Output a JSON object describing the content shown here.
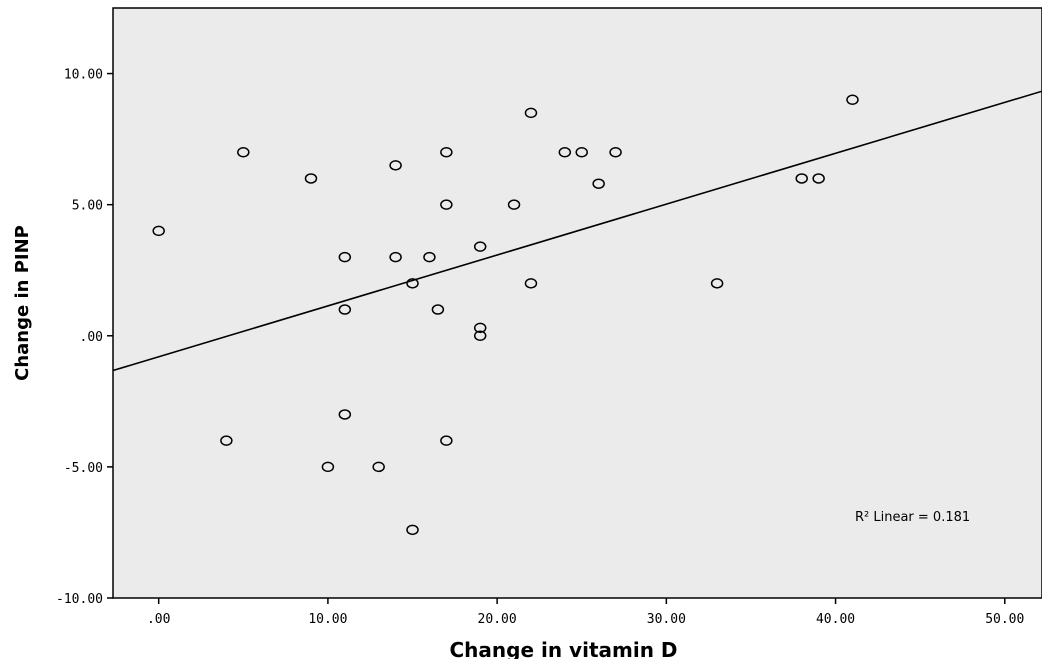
{
  "chart_data": {
    "type": "scatter",
    "title": "",
    "xlabel": "Change in vitamin D",
    "ylabel": "Change in PINP",
    "xlim": [
      -2.7,
      52.2
    ],
    "ylim": [
      -10,
      12.5
    ],
    "x_ticks": [
      {
        "value": 0,
        "label": ".00"
      },
      {
        "value": 10,
        "label": "10.00"
      },
      {
        "value": 20,
        "label": "20.00"
      },
      {
        "value": 30,
        "label": "30.00"
      },
      {
        "value": 40,
        "label": "40.00"
      },
      {
        "value": 50,
        "label": "50.00"
      }
    ],
    "y_ticks": [
      {
        "value": 10,
        "label": "10.00"
      },
      {
        "value": 5,
        "label": "5.00"
      },
      {
        "value": 0,
        "label": ".00"
      },
      {
        "value": -5,
        "label": "-5.00"
      },
      {
        "value": -10,
        "label": "-10.00"
      }
    ],
    "points": [
      {
        "x": 0,
        "y": 4
      },
      {
        "x": 4,
        "y": -4
      },
      {
        "x": 5,
        "y": 7
      },
      {
        "x": 9,
        "y": 6
      },
      {
        "x": 10,
        "y": -5
      },
      {
        "x": 11,
        "y": 3
      },
      {
        "x": 11,
        "y": 1
      },
      {
        "x": 11,
        "y": -3
      },
      {
        "x": 13,
        "y": -5
      },
      {
        "x": 14,
        "y": 6.5
      },
      {
        "x": 14,
        "y": 3
      },
      {
        "x": 15,
        "y": 2
      },
      {
        "x": 15,
        "y": -7.4
      },
      {
        "x": 16,
        "y": 3
      },
      {
        "x": 16.5,
        "y": 1
      },
      {
        "x": 17,
        "y": 7
      },
      {
        "x": 17,
        "y": 5
      },
      {
        "x": 17,
        "y": -4
      },
      {
        "x": 19,
        "y": 3.4
      },
      {
        "x": 19,
        "y": 0.3
      },
      {
        "x": 19,
        "y": 0
      },
      {
        "x": 21,
        "y": 5
      },
      {
        "x": 22,
        "y": 8.5
      },
      {
        "x": 22,
        "y": 2
      },
      {
        "x": 24,
        "y": 7
      },
      {
        "x": 25,
        "y": 7
      },
      {
        "x": 26,
        "y": 5.8
      },
      {
        "x": 27,
        "y": 7
      },
      {
        "x": 33,
        "y": 2
      },
      {
        "x": 38,
        "y": 6
      },
      {
        "x": 39,
        "y": 6
      },
      {
        "x": 41,
        "y": 9
      }
    ],
    "fit_line": {
      "intercept": -0.8,
      "slope": 0.194
    },
    "annotation": "R² Linear = 0.181",
    "grid": false,
    "colors": {
      "plot_background": "#ebebeb",
      "marker_stroke": "#000000",
      "line": "#000000"
    }
  }
}
